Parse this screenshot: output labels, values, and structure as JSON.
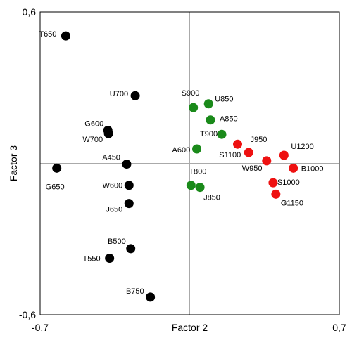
{
  "chart_data": {
    "type": "scatter",
    "xlabel": "Factor 2",
    "ylabel": "Factor 3",
    "xlim": [
      -0.7,
      0.7
    ],
    "ylim": [
      -0.6,
      0.6
    ],
    "x_tick_labels": [
      "-0,7",
      "0,7"
    ],
    "y_tick_labels": [
      "0,6",
      "-0,6"
    ],
    "grid": false,
    "zero_lines": true,
    "colors": {
      "black": "#000000",
      "green": "#1a8a1a",
      "red": "#ee1111",
      "axis": "#000000",
      "zero_line": "#aaaaaa"
    },
    "points": [
      {
        "label": "T650",
        "x": -0.58,
        "y": 0.505,
        "color": "black"
      },
      {
        "label": "U700",
        "x": -0.255,
        "y": 0.268,
        "color": "black"
      },
      {
        "label": "G600",
        "x": -0.383,
        "y": 0.131,
        "color": "black"
      },
      {
        "label": "W700",
        "x": -0.38,
        "y": 0.118,
        "color": "black"
      },
      {
        "label": "A450",
        "x": -0.295,
        "y": -0.003,
        "color": "black"
      },
      {
        "label": "G650",
        "x": -0.622,
        "y": -0.019,
        "color": "black"
      },
      {
        "label": "W600",
        "x": -0.284,
        "y": -0.087,
        "color": "black"
      },
      {
        "label": "J650",
        "x": -0.284,
        "y": -0.159,
        "color": "black"
      },
      {
        "label": "B500",
        "x": -0.276,
        "y": -0.338,
        "color": "black"
      },
      {
        "label": "T550",
        "x": -0.375,
        "y": -0.376,
        "color": "black"
      },
      {
        "label": "B750",
        "x": -0.184,
        "y": -0.53,
        "color": "black"
      },
      {
        "label": "S900",
        "x": 0.017,
        "y": 0.221,
        "color": "green"
      },
      {
        "label": "U850",
        "x": 0.088,
        "y": 0.236,
        "color": "green"
      },
      {
        "label": "A850",
        "x": 0.097,
        "y": 0.172,
        "color": "green"
      },
      {
        "label": "T900",
        "x": 0.15,
        "y": 0.115,
        "color": "green"
      },
      {
        "label": "A600",
        "x": 0.033,
        "y": 0.057,
        "color": "green"
      },
      {
        "label": "T800",
        "x": 0.006,
        "y": -0.087,
        "color": "green"
      },
      {
        "label": "J850",
        "x": 0.048,
        "y": -0.095,
        "color": "green"
      },
      {
        "label": "J950",
        "x": 0.224,
        "y": 0.076,
        "color": "red"
      },
      {
        "label": "S1100",
        "x": 0.276,
        "y": 0.043,
        "color": "red"
      },
      {
        "label": "U1200",
        "x": 0.441,
        "y": 0.032,
        "color": "red"
      },
      {
        "label": "W950",
        "x": 0.36,
        "y": 0.01,
        "color": "red"
      },
      {
        "label": "B1000",
        "x": 0.485,
        "y": -0.019,
        "color": "red"
      },
      {
        "label": "S1000",
        "x": 0.39,
        "y": -0.077,
        "color": "red"
      },
      {
        "label": "G1150",
        "x": 0.403,
        "y": -0.122,
        "color": "red"
      }
    ]
  }
}
